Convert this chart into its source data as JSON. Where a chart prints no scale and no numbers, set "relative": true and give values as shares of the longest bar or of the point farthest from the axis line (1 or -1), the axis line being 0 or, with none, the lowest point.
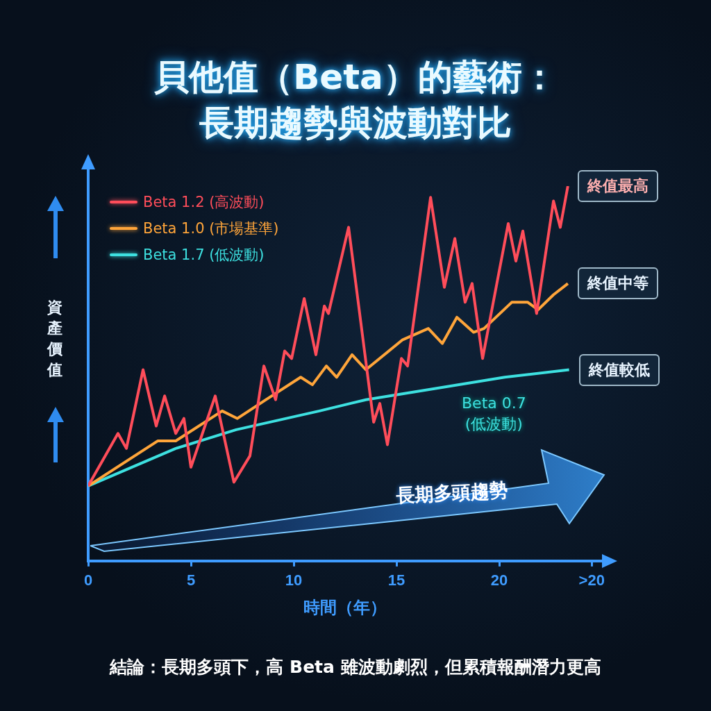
{
  "chart_data": {
    "type": "line",
    "title": "貝他值（Beta）的藝術：長期趨勢與波動對比",
    "xlabel": "時間（年）",
    "ylabel": "資產價值",
    "relative": true,
    "legend": "top left",
    "grid": false,
    "marker": "none",
    "line_style": "solid",
    "xlim": [
      0,
      25
    ],
    "xticks": [
      0,
      5,
      10,
      15,
      20,
      {
        "value": 24.5,
        "label": ">20"
      }
    ],
    "series": [
      {
        "name": "Beta 1.2 (高波動)",
        "color": "#ff4d5a",
        "x": [
          0,
          1.45,
          1.86,
          2.67,
          3.31,
          3.72,
          4.26,
          4.66,
          5.0,
          6.18,
          7.09,
          7.87,
          8.55,
          9.12,
          9.56,
          9.9,
          10.51,
          11.08,
          11.49,
          11.69,
          12.67,
          13.89,
          14.19,
          14.56,
          15.24,
          15.54,
          16.66,
          17.33,
          17.84,
          18.34,
          18.68,
          19.19,
          20.44,
          20.81,
          21.15,
          21.82,
          22.64,
          22.97,
          23.34
        ],
        "values": [
          0.2,
          0.34,
          0.3,
          0.51,
          0.36,
          0.44,
          0.34,
          0.38,
          0.25,
          0.44,
          0.21,
          0.28,
          0.52,
          0.43,
          0.56,
          0.54,
          0.7,
          0.55,
          0.68,
          0.66,
          0.89,
          0.37,
          0.42,
          0.31,
          0.54,
          0.52,
          0.97,
          0.73,
          0.86,
          0.69,
          0.74,
          0.54,
          0.9,
          0.8,
          0.88,
          0.66,
          0.96,
          0.89,
          1.0
        ]
      },
      {
        "name": "Beta 1.0 (市場基準)",
        "color": "#ffa53a",
        "x": [
          0,
          3.38,
          4.26,
          6.52,
          7.26,
          8.65,
          10.34,
          10.91,
          11.59,
          12.09,
          12.84,
          13.51,
          15.3,
          16.55,
          17.23,
          17.94,
          18.75,
          19.26,
          20.61,
          21.39,
          21.89,
          22.64,
          23.34
        ],
        "values": [
          0.2,
          0.32,
          0.32,
          0.4,
          0.38,
          0.43,
          0.49,
          0.47,
          0.52,
          0.49,
          0.55,
          0.51,
          0.59,
          0.62,
          0.58,
          0.65,
          0.61,
          0.62,
          0.69,
          0.69,
          0.67,
          0.71,
          0.74
        ]
      },
      {
        "name": "Beta 1.7 (低波動)",
        "color": "#3de0e0",
        "x": [
          0,
          2.13,
          4.26,
          7.2,
          11.25,
          13.51,
          16.9,
          20.27,
          23.4
        ],
        "values": [
          0.2,
          0.25,
          0.3,
          0.35,
          0.4,
          0.43,
          0.46,
          0.49,
          0.51
        ]
      }
    ],
    "annotations": [
      "終值最高",
      "終值中等",
      "終值較低",
      "Beta 0.7\n(低波動)",
      "長期多頭趨勢",
      "結論：長期多頭下，高 Beta 雖波動劇烈，但累積報酬潛力更高"
    ]
  }
}
